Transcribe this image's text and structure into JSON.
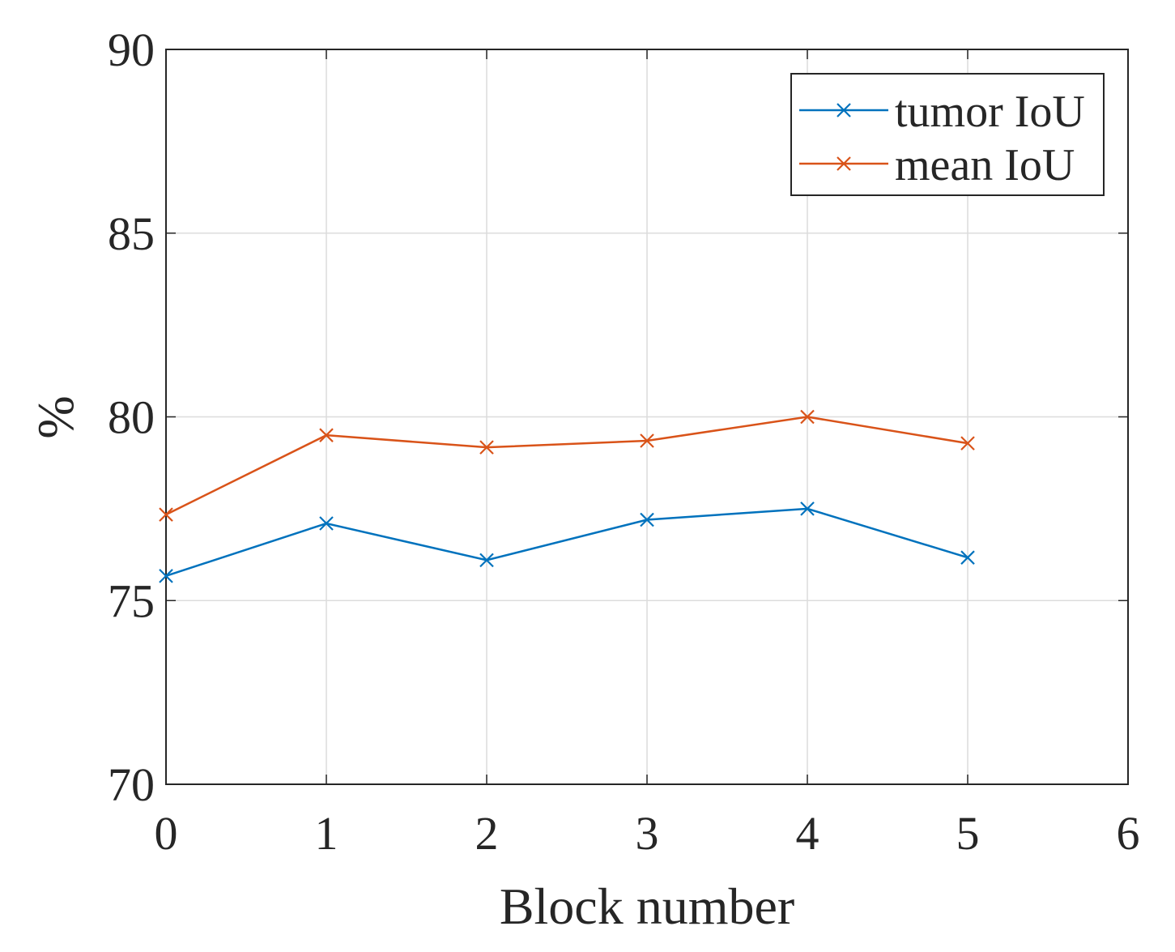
{
  "chart_data": {
    "type": "line",
    "xlabel": "Block number",
    "ylabel": "%",
    "x": [
      0,
      1,
      2,
      3,
      4,
      5
    ],
    "series": [
      {
        "name": "tumor IoU",
        "color": "#0072BD",
        "values": [
          75.67,
          77.1,
          76.1,
          77.2,
          77.5,
          76.17
        ]
      },
      {
        "name": "mean IoU",
        "color": "#D95319",
        "values": [
          77.34,
          79.5,
          79.17,
          79.35,
          80.0,
          79.28
        ]
      }
    ],
    "xlim": [
      0,
      6
    ],
    "xticks": [
      0,
      1,
      2,
      3,
      4,
      5,
      6
    ],
    "ylim": [
      70,
      90
    ],
    "yticks": [
      70,
      75,
      80,
      85,
      90
    ],
    "grid": true,
    "legend": "northeast",
    "marker": "x"
  }
}
